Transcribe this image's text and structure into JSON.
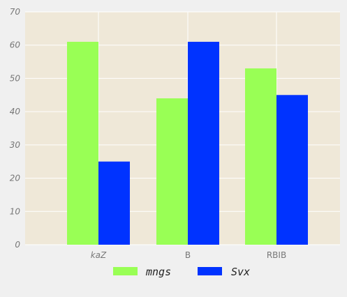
{
  "chart_data": {
    "type": "bar",
    "categories": [
      "kaZ",
      "B",
      "RBIB"
    ],
    "category_italic": [
      true,
      false,
      false
    ],
    "series": [
      {
        "name": "mngs",
        "values": [
          61,
          44,
          53
        ],
        "color": "#99ff55"
      },
      {
        "name": "Svx",
        "values": [
          25,
          61,
          45
        ],
        "color": "#0033ff"
      }
    ],
    "ylim": [
      0,
      70
    ],
    "yticks": [
      0,
      10,
      20,
      30,
      40,
      50,
      60,
      70
    ],
    "grid": true,
    "legend_placement": "bottom-center",
    "plot_background": "#efe8d8",
    "figure_background": "#f0f0f0",
    "grid_color": "#ffffff"
  }
}
